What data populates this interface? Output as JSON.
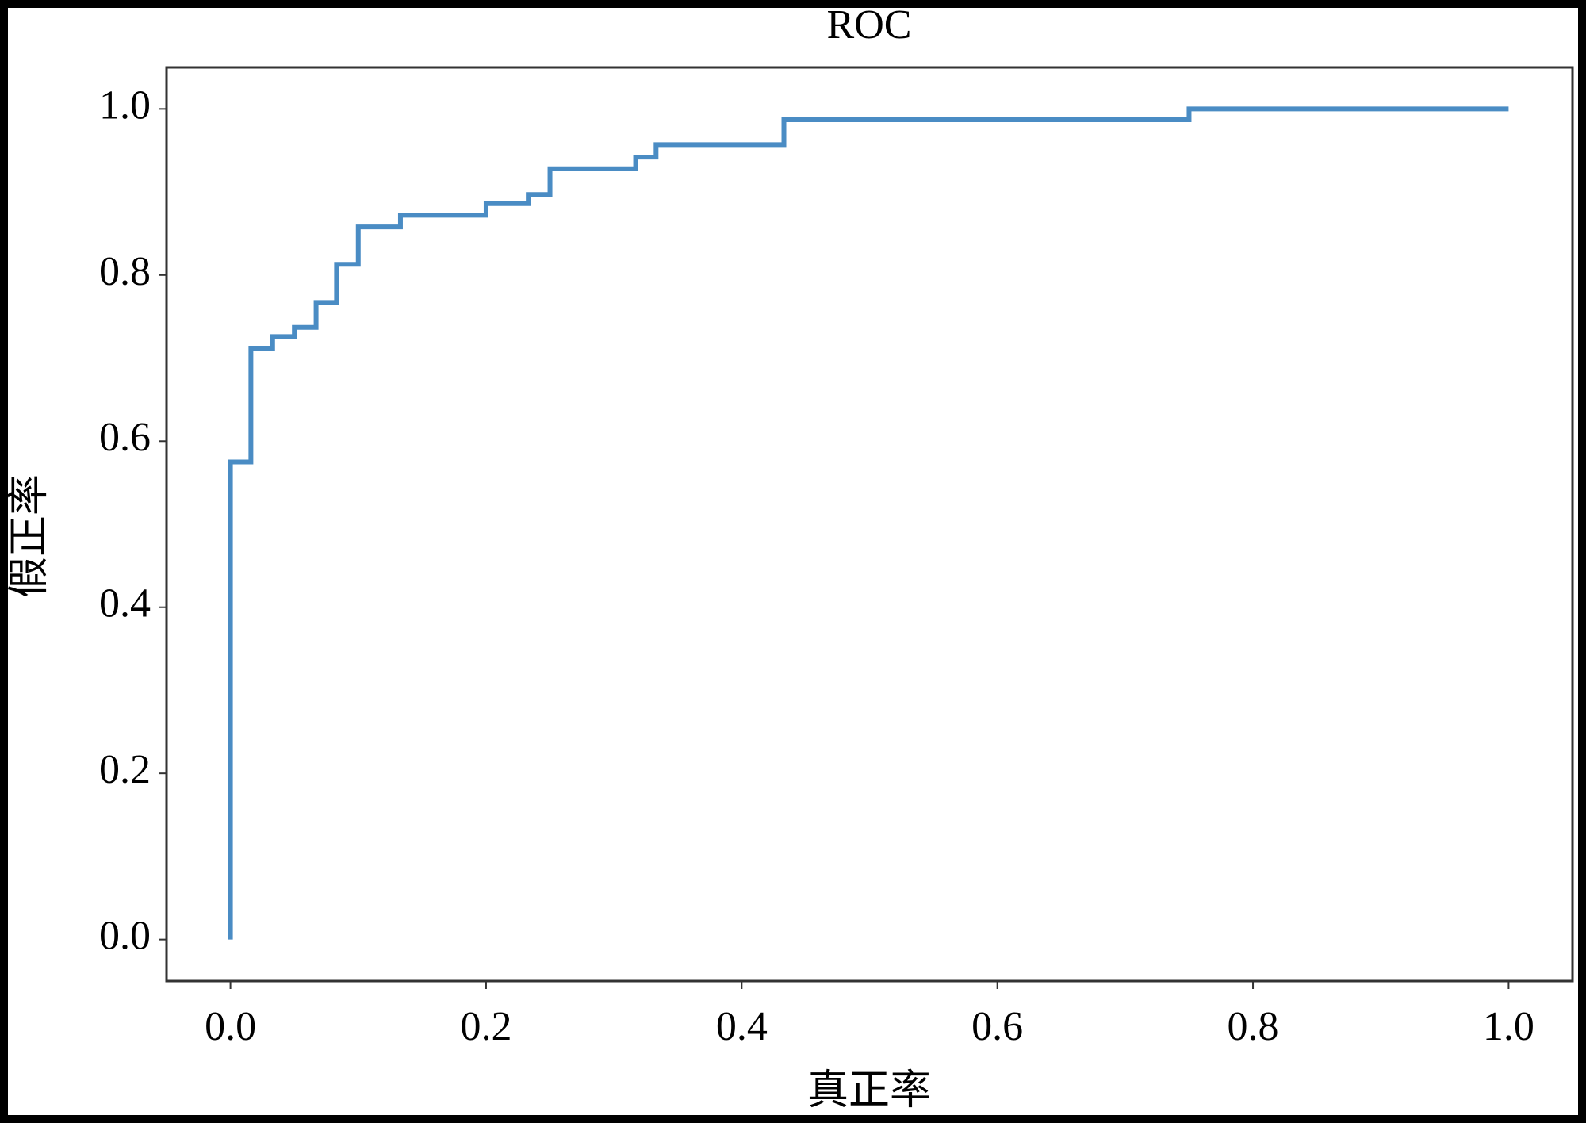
{
  "chart_data": {
    "type": "line",
    "title": "ROC",
    "x_label": "真正率",
    "y_label": "假正率",
    "series": [
      {
        "color": "#4a8cc4",
        "x": [
          0,
          0,
          0.016,
          0.016,
          0.033,
          0.033,
          0.05,
          0.05,
          0.067,
          0.067,
          0.083,
          0.083,
          0.1,
          0.1,
          0.133,
          0.133,
          0.2,
          0.2,
          0.233,
          0.233,
          0.25,
          0.25,
          0.317,
          0.317,
          0.333,
          0.333,
          0.433,
          0.433,
          0.75,
          0.75,
          1.0
        ],
        "values": [
          0,
          0.575,
          0.575,
          0.712,
          0.712,
          0.726,
          0.726,
          0.737,
          0.737,
          0.767,
          0.767,
          0.813,
          0.813,
          0.858,
          0.858,
          0.872,
          0.872,
          0.886,
          0.886,
          0.897,
          0.897,
          0.928,
          0.928,
          0.942,
          0.942,
          0.957,
          0.957,
          0.987,
          0.987,
          1.0,
          1.0
        ]
      }
    ],
    "xlim": [
      -0.05,
      1.05
    ],
    "ylim": [
      -0.05,
      1.05
    ],
    "xticks": [
      {
        "value": 0,
        "label": "0.0"
      },
      0.2,
      0.4,
      0.6,
      0.8,
      {
        "value": 1,
        "label": "1.0"
      }
    ],
    "yticks": [
      {
        "value": 0,
        "label": "0.0"
      },
      0.2,
      0.4,
      0.6,
      0.8,
      {
        "value": 1,
        "label": "1.0"
      }
    ]
  }
}
